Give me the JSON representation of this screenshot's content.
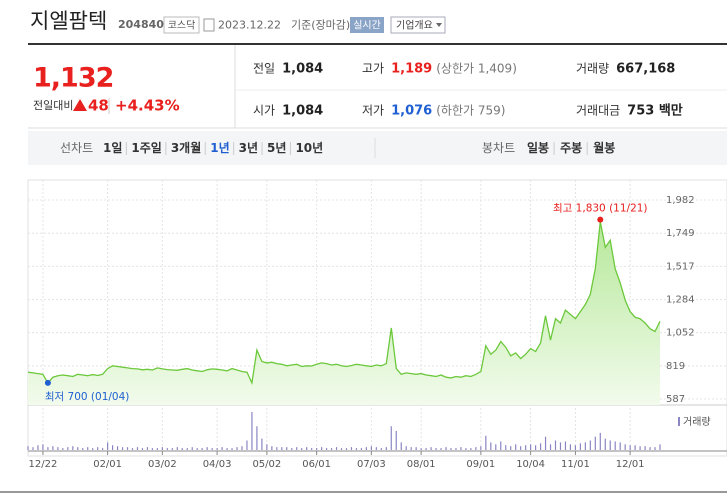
{
  "header": {
    "name": "지엘팜텍",
    "code": "204840",
    "market": "코스닥",
    "date": "2023.12.22",
    "basis": "기준(장마감)",
    "realtime": "실시간",
    "company_info": "기업개요"
  },
  "quote": {
    "price": "1,132",
    "change_label": "전일대비",
    "change": "48",
    "change_pct": "+4.43%",
    "stats": [
      {
        "label": "전일",
        "value": "1,084"
      },
      {
        "label": "고가",
        "value": "1,189",
        "note": "(상한가 1,409)"
      },
      {
        "label": "거래량",
        "value": "667,168"
      },
      {
        "label": "시가",
        "value": "1,084"
      },
      {
        "label": "저가",
        "value": "1,076",
        "note": "(하한가 759)"
      },
      {
        "label": "거래대금",
        "value": "753 백만"
      }
    ]
  },
  "tabs": {
    "line_label": "선차트",
    "line_periods": [
      "1일",
      "1주일",
      "3개월",
      "1년",
      "3년",
      "5년",
      "10년"
    ],
    "selected": "1년",
    "candle_label": "봉차트",
    "candle_periods": [
      "일봉",
      "주봉",
      "월봉"
    ]
  },
  "chart_data": {
    "type": "line",
    "color": "#6cc83c",
    "categories": [
      null,
      null,
      null,
      "12/22",
      null,
      null,
      null,
      null,
      null,
      null,
      null,
      null,
      null,
      null,
      null,
      null,
      "02/01",
      null,
      null,
      null,
      null,
      null,
      null,
      null,
      null,
      null,
      null,
      "03/02",
      null,
      null,
      null,
      null,
      null,
      null,
      null,
      null,
      null,
      null,
      "04/03",
      null,
      null,
      null,
      null,
      null,
      null,
      null,
      null,
      null,
      "05/02",
      null,
      null,
      null,
      null,
      null,
      null,
      null,
      null,
      null,
      "06/01",
      null,
      null,
      null,
      null,
      null,
      null,
      null,
      null,
      null,
      null,
      "07/03",
      null,
      null,
      null,
      null,
      null,
      null,
      null,
      null,
      null,
      "08/01",
      null,
      null,
      null,
      null,
      null,
      null,
      null,
      null,
      null,
      null,
      null,
      "09/01",
      null,
      null,
      null,
      null,
      null,
      null,
      null,
      null,
      null,
      "10/04",
      null,
      null,
      null,
      null,
      null,
      null,
      null,
      null,
      "11/01",
      null,
      null,
      null,
      null,
      null,
      null,
      null,
      null,
      null,
      null,
      "12/01",
      null,
      null,
      null,
      null,
      null,
      null
    ],
    "values": [
      775,
      770,
      765,
      760,
      700,
      740,
      750,
      755,
      750,
      745,
      760,
      755,
      750,
      758,
      752,
      760,
      800,
      820,
      815,
      810,
      805,
      800,
      798,
      792,
      795,
      790,
      805,
      798,
      793,
      790,
      788,
      795,
      800,
      790,
      785,
      780,
      792,
      798,
      795,
      790,
      785,
      800,
      790,
      780,
      775,
      700,
      930,
      850,
      840,
      845,
      835,
      830,
      820,
      825,
      830,
      815,
      820,
      818,
      830,
      840,
      835,
      825,
      830,
      820,
      815,
      822,
      830,
      825,
      820,
      815,
      825,
      820,
      835,
      1085,
      800,
      760,
      770,
      765,
      760,
      765,
      755,
      750,
      745,
      755,
      740,
      735,
      745,
      740,
      750,
      745,
      760,
      780,
      960,
      900,
      930,
      990,
      950,
      890,
      910,
      870,
      900,
      940,
      920,
      980,
      1170,
      1000,
      1150,
      1120,
      1210,
      1180,
      1150,
      1200,
      1250,
      1320,
      1500,
      1830,
      1650,
      1700,
      1500,
      1400,
      1280,
      1200,
      1160,
      1150,
      1120,
      1080,
      1060,
      1132
    ],
    "volume": {
      "name": "거래량",
      "color": "#8a86c4",
      "values": [
        4,
        3,
        5,
        6,
        3,
        4,
        3,
        2,
        3,
        4,
        3,
        2,
        3,
        2,
        3,
        2,
        8,
        5,
        4,
        3,
        3,
        2,
        3,
        2,
        3,
        2,
        2,
        3,
        2,
        2,
        3,
        2,
        2,
        3,
        2,
        2,
        3,
        2,
        2,
        3,
        2,
        2,
        3,
        4,
        10,
        40,
        25,
        12,
        6,
        4,
        3,
        3,
        3,
        2,
        3,
        2,
        3,
        2,
        2,
        3,
        2,
        2,
        3,
        2,
        2,
        3,
        2,
        2,
        3,
        4,
        3,
        2,
        3,
        25,
        20,
        8,
        4,
        3,
        3,
        2,
        2,
        3,
        2,
        2,
        3,
        2,
        2,
        3,
        2,
        2,
        3,
        4,
        15,
        8,
        6,
        9,
        5,
        4,
        6,
        4,
        5,
        6,
        5,
        7,
        14,
        6,
        10,
        8,
        9,
        6,
        5,
        7,
        8,
        10,
        14,
        18,
        12,
        10,
        9,
        8,
        6,
        5,
        5,
        4,
        4,
        3,
        3,
        6
      ]
    },
    "annotations": {
      "max": {
        "text": "최고 1,830 (11/21)",
        "color": "#e8201e"
      },
      "min": {
        "text": "최저 700 (01/04)",
        "color": "#1f5fd1"
      }
    },
    "ylim": [
      587,
      1982
    ],
    "yticks": [
      {
        "value": 587,
        "label": "587"
      },
      {
        "value": 819,
        "label": "819"
      },
      {
        "value": 1052,
        "label": "1,052"
      },
      {
        "value": 1284,
        "label": "1,284"
      },
      {
        "value": 1517,
        "label": "1,517"
      },
      {
        "value": 1749,
        "label": "1,749"
      },
      {
        "value": 1982,
        "label": "1,982"
      }
    ],
    "grid": true
  }
}
